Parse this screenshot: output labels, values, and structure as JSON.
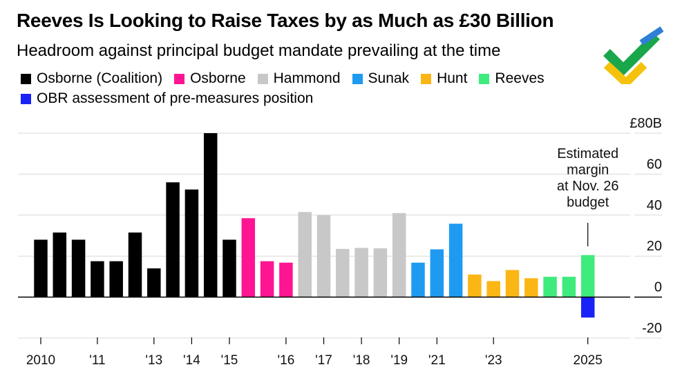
{
  "title": "Reeves Is Looking to Raise Taxes by as Much as £30 Billion",
  "subtitle": "Headroom against principal budget mandate prevailing at the time",
  "colors": {
    "osborne_coalition": "#000000",
    "osborne": "#ff1493",
    "hammond": "#c8c8c8",
    "sunak": "#1e9bf0",
    "hunt": "#fbb615",
    "reeves": "#3feb7d",
    "obr": "#1a23f5"
  },
  "legend": [
    {
      "label": "Osborne (Coalition)",
      "color": "#000000"
    },
    {
      "label": "Osborne",
      "color": "#ff1493"
    },
    {
      "label": "Hammond",
      "color": "#c8c8c8"
    },
    {
      "label": "Sunak",
      "color": "#1e9bf0"
    },
    {
      "label": "Hunt",
      "color": "#fbb615"
    },
    {
      "label": "Reeves",
      "color": "#3feb7d"
    },
    {
      "label": "OBR assessment of pre-measures position",
      "color": "#1a23f5"
    }
  ],
  "chart_data": {
    "type": "bar",
    "title": "Reeves Is Looking to Raise Taxes by as Much as £30 Billion",
    "subtitle": "Headroom against principal budget mandate prevailing at the time",
    "ylabel": "£B",
    "ylim": [
      -20,
      80
    ],
    "y_ticks": [
      {
        "value": 80,
        "label": "£80B"
      },
      {
        "value": 60,
        "label": "60"
      },
      {
        "value": 40,
        "label": "40"
      },
      {
        "value": 20,
        "label": "20"
      },
      {
        "value": 0,
        "label": "0"
      },
      {
        "value": -20,
        "label": "-20"
      }
    ],
    "x_ticks": [
      {
        "index": 0,
        "label": "2010"
      },
      {
        "index": 3,
        "label": "'11"
      },
      {
        "index": 6,
        "label": "'13"
      },
      {
        "index": 8,
        "label": "'14"
      },
      {
        "index": 10,
        "label": "'15"
      },
      {
        "index": 13,
        "label": "'16"
      },
      {
        "index": 15,
        "label": "'17"
      },
      {
        "index": 17,
        "label": "'18"
      },
      {
        "index": 19,
        "label": "'19"
      },
      {
        "index": 21,
        "label": "'21"
      },
      {
        "index": 24,
        "label": "'23"
      },
      {
        "index": 29,
        "label": "2025"
      }
    ],
    "grid": true,
    "series": [
      {
        "name": "Osborne (Coalition)",
        "color": "#000000",
        "points": [
          {
            "index": 0,
            "value": 28
          },
          {
            "index": 1,
            "value": 31.5
          },
          {
            "index": 2,
            "value": 28
          },
          {
            "index": 3,
            "value": 17.5
          },
          {
            "index": 4,
            "value": 17.5
          },
          {
            "index": 5,
            "value": 31.5
          },
          {
            "index": 6,
            "value": 14
          },
          {
            "index": 7,
            "value": 56
          },
          {
            "index": 8,
            "value": 52.5
          },
          {
            "index": 9,
            "value": 80
          },
          {
            "index": 10,
            "value": 28
          }
        ]
      },
      {
        "name": "Osborne",
        "color": "#ff1493",
        "points": [
          {
            "index": 11,
            "value": 38.5
          },
          {
            "index": 12,
            "value": 17.5
          },
          {
            "index": 13,
            "value": 16.8
          }
        ]
      },
      {
        "name": "Hammond",
        "color": "#c8c8c8",
        "points": [
          {
            "index": 14,
            "value": 41.5
          },
          {
            "index": 15,
            "value": 40
          },
          {
            "index": 16,
            "value": 23.5
          },
          {
            "index": 17,
            "value": 24
          },
          {
            "index": 18,
            "value": 23.8
          },
          {
            "index": 19,
            "value": 41
          }
        ]
      },
      {
        "name": "Sunak",
        "color": "#1e9bf0",
        "points": [
          {
            "index": 20,
            "value": 16.8
          },
          {
            "index": 21,
            "value": 23.3
          },
          {
            "index": 22,
            "value": 35.8
          }
        ]
      },
      {
        "name": "Hunt",
        "color": "#fbb615",
        "points": [
          {
            "index": 23,
            "value": 11
          },
          {
            "index": 24,
            "value": 7.8
          },
          {
            "index": 25,
            "value": 13.2
          },
          {
            "index": 26,
            "value": 9.2
          }
        ]
      },
      {
        "name": "Reeves",
        "color": "#3feb7d",
        "points": [
          {
            "index": 27,
            "value": 9.9
          },
          {
            "index": 28,
            "value": 9.9
          },
          {
            "index": 29,
            "value": 20.5
          }
        ]
      },
      {
        "name": "OBR assessment of pre-measures position",
        "color": "#1a23f5",
        "points": [
          {
            "index": 29,
            "value": -10
          }
        ]
      }
    ],
    "annotations": [
      {
        "target_index": 29,
        "lines": [
          "Estimated",
          "margin",
          "at Nov. 26",
          "budget"
        ]
      }
    ]
  }
}
